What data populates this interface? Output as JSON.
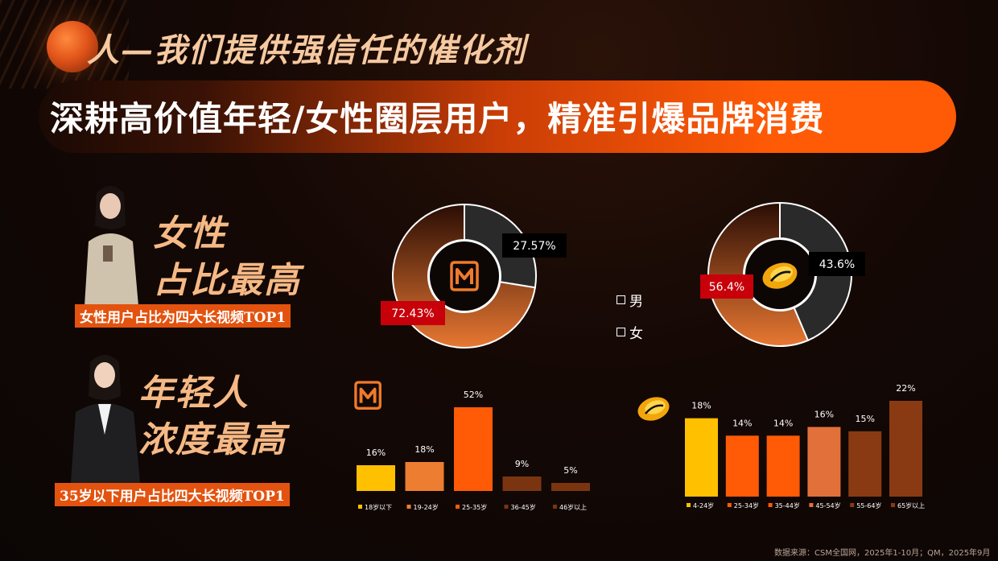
{
  "header": {
    "headline": "人—我们提供强信任的催化剂",
    "banner": "深耕高价值年轻/女性圈层用户，精准引爆品牌消费"
  },
  "left": {
    "female_slogan_line1": "女性",
    "female_slogan_line2": "占比最高",
    "female_tag": "女性用户占比为四大长视频TOP1",
    "youth_slogan_line1": "年轻人",
    "youth_slogan_line2": "浓度最高",
    "youth_tag": "35岁以下用户占比四大长视频TOP1"
  },
  "footer": {
    "source": "数据来源：CSM全国网，2025年1-10月；QM，2025年9月"
  },
  "colors": {
    "male": "#2a2a2a",
    "female_gradient_top": "#2a0d04",
    "female_gradient_bottom": "#e87832",
    "label_red": "#c8000a",
    "accent_orange": "#ff5a06"
  },
  "icons": {
    "platform_a": "mango-tv-logo",
    "platform_b": "pingpong-logo"
  },
  "chart_data": [
    {
      "type": "pie",
      "variant": "donut",
      "platform": "mango-tv-logo",
      "categories": [
        "男",
        "女"
      ],
      "values": [
        27.57,
        72.43
      ],
      "labels": [
        "27.57%",
        "72.43%"
      ],
      "legend": [
        "男",
        "女"
      ]
    },
    {
      "type": "pie",
      "variant": "donut",
      "platform": "pingpong-logo",
      "categories": [
        "男",
        "女"
      ],
      "values": [
        43.6,
        56.4
      ],
      "labels": [
        "43.6%",
        "56.4%"
      ]
    },
    {
      "type": "bar",
      "platform": "mango-tv-logo",
      "categories": [
        "18岁以下",
        "19-24岁",
        "25-35岁",
        "36-45岁",
        "46岁以上"
      ],
      "values": [
        16,
        18,
        52,
        9,
        5
      ],
      "labels": [
        "16%",
        "18%",
        "52%",
        "9%",
        "5%"
      ],
      "colors": [
        "#ffc000",
        "#ed7d31",
        "#ff5a06",
        "#7a3510",
        "#7a3510"
      ]
    },
    {
      "type": "bar",
      "platform": "pingpong-logo",
      "categories": [
        "4-24岁",
        "25-34岁",
        "35-44岁",
        "45-54岁",
        "55-64岁",
        "65岁以上"
      ],
      "values": [
        18,
        14,
        14,
        16,
        15,
        22
      ],
      "labels": [
        "18%",
        "14%",
        "14%",
        "16%",
        "15%",
        "22%"
      ],
      "colors": [
        "#ffc000",
        "#ff5a06",
        "#ff5a06",
        "#e2703a",
        "#8a3a12",
        "#8a3a12"
      ]
    }
  ]
}
